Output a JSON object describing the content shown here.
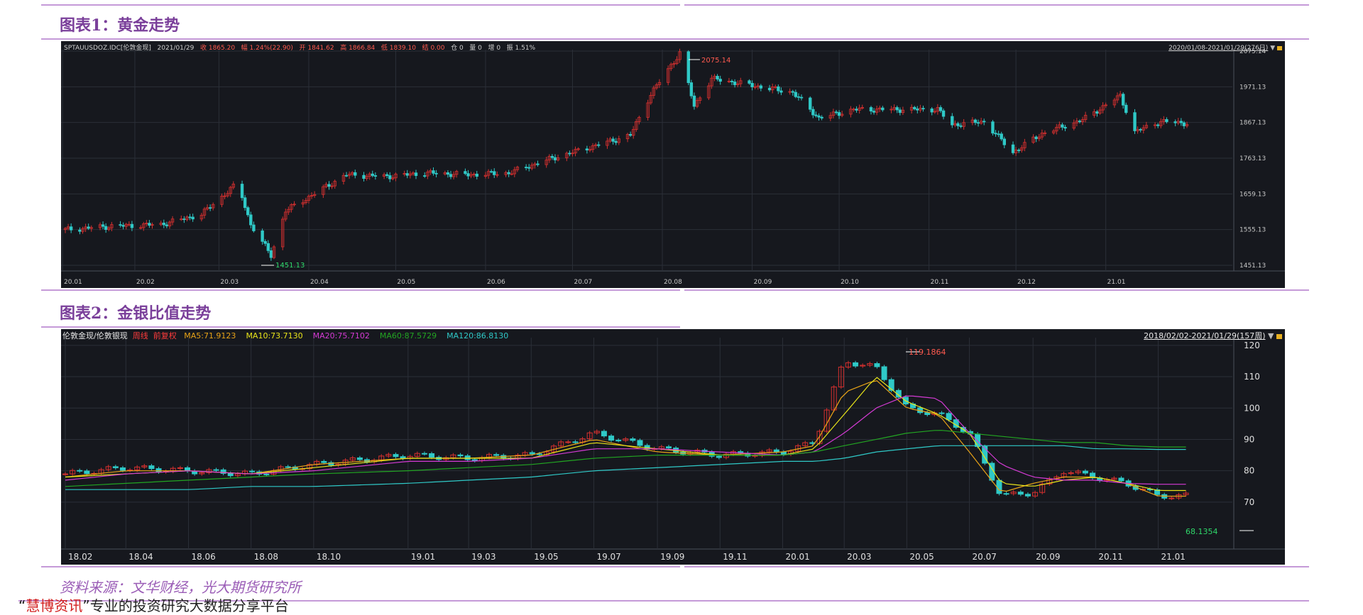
{
  "colors": {
    "up": "#d6302f",
    "down": "#2fc9c7",
    "bg": "#16181e",
    "grid": "#2b2f38",
    "accent": "#c59ad8",
    "title": "#7a3f9a"
  },
  "titles": {
    "chart1": "图表1：黄金走势",
    "chart2": "图表2：金银比值走势"
  },
  "chart1": {
    "header": [
      "SPTAUUSDOZ.IDC[伦敦金现]",
      "2021/01/29",
      "收 1865.20",
      "幅 1.24%(22.90)",
      "开 1841.62",
      "高 1866.84",
      "低 1839.10",
      "结 0.00",
      "仓 0",
      "量 0",
      "增 0",
      "振 1.51%"
    ],
    "range": "2020/01/08-2021/01/29(276日)",
    "lock_icon": "lock-icon",
    "dropdown_icon": "triangle-down-icon",
    "ylabels": [
      "2075.14",
      "1971.13",
      "1867.13",
      "1763.13",
      "1659.13",
      "1555.13",
      "1451.13"
    ],
    "xlabels": [
      "20.01",
      "20.02",
      "20.03",
      "20.04",
      "20.05",
      "20.06",
      "20.07",
      "20.08",
      "20.09",
      "20.10",
      "20.11",
      "20.12",
      "21.01"
    ],
    "max_label": "2075.14",
    "min_label": "1451.13"
  },
  "chart2": {
    "header_name": "伦敦金现/伦敦银现",
    "header_period": "周线",
    "header_adj": "前复权",
    "ma": [
      {
        "label": "MA5:71.9123",
        "color": "#e8a317"
      },
      {
        "label": "MA10:73.7130",
        "color": "#e8e41a"
      },
      {
        "label": "MA20:75.7102",
        "color": "#d43ad4"
      },
      {
        "label": "MA60:87.5729",
        "color": "#22a522"
      },
      {
        "label": "MA120:86.8130",
        "color": "#2fc9c7"
      }
    ],
    "range": "2018/02/02-2021/01/29(157周)",
    "ylabels": [
      "120",
      "110",
      "100",
      "90",
      "80",
      "70"
    ],
    "xlabels": [
      "18.02",
      "18.04",
      "18.06",
      "18.08",
      "18.10",
      "19.01",
      "19.03",
      "19.05",
      "19.07",
      "19.09",
      "19.11",
      "20.01",
      "20.03",
      "20.05",
      "20.07",
      "20.09",
      "20.11",
      "21.01"
    ],
    "max_label": "119.1864",
    "min_label": "68.1354"
  },
  "chart_data": [
    {
      "type": "line",
      "title": "图表1：黄金走势",
      "series": [
        {
          "name": "SPTAUUSDOZ.IDC[伦敦金现]",
          "x": [
            "2020-01-08",
            "2020-01-24",
            "2020-02-10",
            "2020-02-24",
            "2020-03-06",
            "2020-03-09",
            "2020-03-12",
            "2020-03-19",
            "2020-03-24",
            "2020-04-14",
            "2020-04-28",
            "2020-05-12",
            "2020-05-26",
            "2020-06-09",
            "2020-06-23",
            "2020-07-07",
            "2020-07-21",
            "2020-07-28",
            "2020-08-07",
            "2020-08-12",
            "2020-08-18",
            "2020-09-01",
            "2020-09-15",
            "2020-09-24",
            "2020-10-06",
            "2020-10-20",
            "2020-11-04",
            "2020-11-09",
            "2020-11-20",
            "2020-11-30",
            "2020-12-10",
            "2020-12-24",
            "2021-01-06",
            "2021-01-11",
            "2021-01-20",
            "2021-01-29"
          ],
          "values": [
            1555,
            1565,
            1570,
            1600,
            1680,
            1650,
            1570,
            1480,
            1610,
            1715,
            1710,
            1720,
            1715,
            1720,
            1760,
            1795,
            1830,
            1950,
            2069,
            1915,
            1995,
            1975,
            1955,
            1880,
            1905,
            1905,
            1905,
            1860,
            1870,
            1780,
            1835,
            1875,
            1945,
            1840,
            1870,
            1865
          ]
        }
      ],
      "ylim": [
        1451.13,
        2075.14
      ],
      "annotations": [
        "2075.14",
        "1451.13"
      ]
    },
    {
      "type": "line",
      "title": "图表2：金银比值走势",
      "x": [
        "2018-02",
        "2018-04",
        "2018-06",
        "2018-08",
        "2018-10",
        "2019-01",
        "2019-03",
        "2019-05",
        "2019-07",
        "2019-09",
        "2019-11",
        "2020-01",
        "2020-02",
        "2020-03",
        "2020-04",
        "2020-05",
        "2020-06",
        "2020-07",
        "2020-08",
        "2020-09",
        "2020-10",
        "2020-11",
        "2020-12",
        "2021-01"
      ],
      "series": [
        {
          "name": "伦敦金现/伦敦银现",
          "values": [
            79,
            81,
            80,
            79,
            82,
            85,
            84,
            85,
            92,
            87,
            85,
            86,
            89,
            115,
            113,
            100,
            98,
            92,
            72,
            73,
            80,
            78,
            76,
            72
          ]
        },
        {
          "name": "MA5",
          "values": [
            78,
            80,
            80,
            79,
            82,
            84,
            84,
            85,
            90,
            86,
            85,
            86,
            88,
            105,
            109,
            100,
            98,
            86,
            73,
            76,
            78,
            78,
            76,
            71.9
          ]
        },
        {
          "name": "MA10",
          "values": [
            78,
            79,
            80,
            79,
            81,
            84,
            84,
            84,
            89,
            87,
            85,
            85,
            87,
            98,
            110,
            102,
            98,
            92,
            76,
            75,
            77,
            78,
            76,
            73.7
          ]
        },
        {
          "name": "MA20",
          "values": [
            77,
            79,
            80,
            79,
            80,
            83,
            83,
            84,
            87,
            87,
            86,
            85,
            86,
            92,
            100,
            104,
            103,
            92,
            82,
            78,
            77,
            77,
            76,
            75.7
          ]
        },
        {
          "name": "MA60",
          "values": [
            75,
            76,
            77,
            78,
            79,
            80,
            81,
            82,
            84,
            85,
            85,
            85,
            86,
            88,
            90,
            92,
            93,
            92,
            91,
            90,
            89,
            89,
            88,
            87.6
          ]
        },
        {
          "name": "MA120",
          "values": [
            74,
            74,
            74,
            75,
            75,
            76,
            77,
            78,
            80,
            81,
            82,
            83,
            83,
            84,
            86,
            87,
            88,
            88,
            88,
            88,
            88,
            87,
            87,
            86.8
          ]
        }
      ],
      "ylim": [
        65,
        122
      ],
      "annotations": [
        "119.1864",
        "68.1354"
      ]
    }
  ],
  "footer": {
    "source": "资料来源：文华财经，光大期货研究所",
    "brand_open": "“",
    "brand_name": "慧博资讯",
    "brand_close": "”",
    "brand_rest": "专业的投资研究大数据分享平台"
  }
}
